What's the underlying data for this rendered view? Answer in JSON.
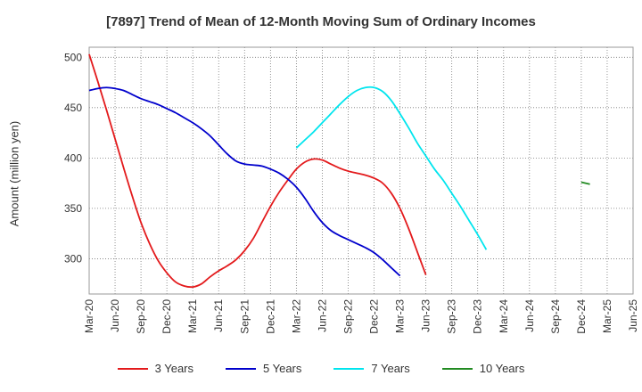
{
  "chart_data": {
    "type": "line",
    "title": "[7897]  Trend of Mean of 12-Month Moving Sum of Ordinary Incomes",
    "xlabel": "",
    "ylabel": "Amount (million yen)",
    "ylim": [
      265,
      510
    ],
    "yticks": [
      300,
      350,
      400,
      450,
      500
    ],
    "xticks": [
      "Mar-20",
      "Jun-20",
      "Sep-20",
      "Dec-20",
      "Mar-21",
      "Jun-21",
      "Sep-21",
      "Dec-21",
      "Mar-22",
      "Jun-22",
      "Sep-22",
      "Dec-22",
      "Mar-23",
      "Jun-23",
      "Sep-23",
      "Dec-23",
      "Mar-24",
      "Jun-24",
      "Sep-24",
      "Dec-24",
      "Mar-25",
      "Jun-25"
    ],
    "grid": true,
    "legend_position": "bottom",
    "series": [
      {
        "name": "3 Years",
        "color": "#e31a1c",
        "start_index": 0,
        "values": [
          503,
          476,
          448,
          419,
          390,
          362,
          336,
          315,
          298,
          286,
          277,
          273,
          272,
          275,
          282,
          288,
          293,
          299,
          308,
          320,
          336,
          352,
          366,
          378,
          389,
          396,
          399,
          398,
          394,
          390,
          387,
          385,
          383,
          380,
          375,
          365,
          350,
          330,
          307,
          284
        ]
      },
      {
        "name": "5 Years",
        "color": "#0000cc",
        "start_index": 0,
        "values": [
          467,
          469,
          470,
          469,
          467,
          463,
          459,
          456,
          453,
          449,
          445,
          440,
          435,
          429,
          422,
          413,
          404,
          397,
          394,
          393,
          392,
          389,
          385,
          379,
          371,
          360,
          347,
          336,
          328,
          323,
          319,
          315,
          311,
          306,
          299,
          291,
          283
        ]
      },
      {
        "name": "7 Years",
        "color": "#00e5ee",
        "start_index": 24,
        "values": [
          410,
          418,
          426,
          435,
          444,
          453,
          461,
          467,
          470,
          470,
          466,
          457,
          444,
          430,
          415,
          402,
          389,
          378,
          365,
          352,
          338,
          324,
          309
        ]
      },
      {
        "name": "10 Years",
        "color": "#228b22",
        "start_index": 57,
        "values": [
          376,
          374
        ]
      }
    ]
  }
}
